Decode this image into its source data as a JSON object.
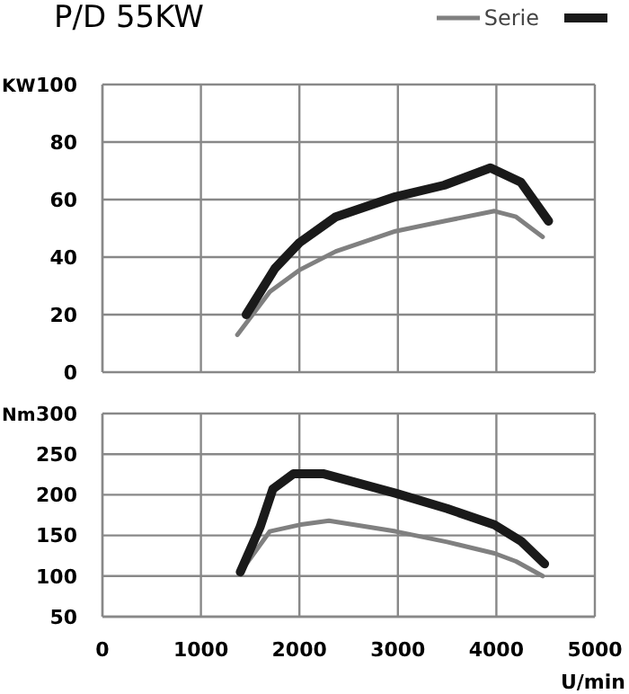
{
  "chart_data": [
    {
      "type": "line",
      "title": "P/D 55KW",
      "ylabel": "KW",
      "xlim": [
        0,
        5000
      ],
      "xticks": [
        0,
        1000,
        2000,
        3000,
        4000,
        5000
      ],
      "ylim": [
        0,
        100
      ],
      "yticks": [
        0,
        20,
        40,
        60,
        80,
        100
      ],
      "grid": true,
      "legend": "top right",
      "tick_labels": "y",
      "line_style": "solid",
      "marker": "none",
      "series": [
        {
          "name": "Serie",
          "color": "#808080",
          "x": [
            1370,
            1700,
            2000,
            2370,
            2975,
            3470,
            3980,
            4200,
            4470
          ],
          "values": [
            13,
            28,
            35.5,
            42,
            49,
            52.5,
            56,
            54,
            47
          ]
        },
        {
          "color": "#1a1a1a",
          "x": [
            1460,
            1750,
            2000,
            2370,
            2975,
            3470,
            3940,
            4250,
            4530
          ],
          "values": [
            20,
            36,
            45,
            54,
            61,
            65,
            71,
            66,
            52.5
          ]
        }
      ]
    },
    {
      "type": "line",
      "ylabel": "Nm",
      "xlabel": "U/min",
      "xlim": [
        0,
        5000
      ],
      "xticks": [
        0,
        1000,
        2000,
        3000,
        4000,
        5000
      ],
      "ylim": [
        50,
        300
      ],
      "yticks": [
        50,
        100,
        150,
        200,
        250,
        300
      ],
      "grid": true,
      "line_style": "solid",
      "marker": "none",
      "series": [
        {
          "color": "#808080",
          "x": [
            1400,
            1480,
            1700,
            2000,
            2300,
            2975,
            3500,
            3980,
            4200,
            4470
          ],
          "values": [
            105,
            118,
            155,
            163,
            168,
            155,
            142,
            128,
            118,
            100
          ]
        },
        {
          "color": "#1a1a1a",
          "x": [
            1400,
            1600,
            1730,
            1940,
            2240,
            2975,
            3500,
            3980,
            4250,
            4490
          ],
          "values": [
            105,
            160,
            207,
            226,
            226,
            202,
            183,
            163,
            143,
            115
          ]
        }
      ]
    }
  ]
}
